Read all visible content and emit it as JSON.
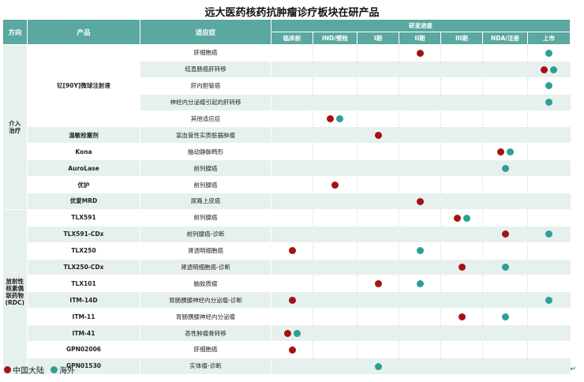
{
  "title": "远大医药核药抗肿瘤诊疗板块在研产品",
  "headers": {
    "direction": "方向",
    "product": "产品",
    "indication": "适应症",
    "progress": "研发进度",
    "stages": [
      "临床前",
      "IND/壁检",
      "I期",
      "II期",
      "III期",
      "NDA/注册",
      "上市"
    ]
  },
  "colors": {
    "china": "#a61212",
    "overseas": "#2e9e98",
    "header": "#5aa89f"
  },
  "groups": [
    {
      "direction": "介入\n治疗",
      "rows": 10
    },
    {
      "direction": "放射性\n核素偶\n联药物\n(RDC)",
      "rows": 10
    }
  ],
  "rows": [
    {
      "product": "钇[90Y]微球注射液",
      "indication": "肝细胞癌",
      "cn": 3,
      "os": 6
    },
    {
      "product": "",
      "indication": "结直肠癌肝转移",
      "cn": 6,
      "os": 6
    },
    {
      "product": "",
      "indication": "肝内胆管癌",
      "cn": null,
      "os": 6
    },
    {
      "product": "",
      "indication": "神经内分泌瘤引起的肝转移",
      "cn": null,
      "os": 6
    },
    {
      "product": "",
      "indication": "其他适应症",
      "cn": 1,
      "os": 1
    },
    {
      "product": "温敏栓塞剂",
      "indication": "富血管性实质脏器肿瘤",
      "cn": 2,
      "os": null
    },
    {
      "product": "Kona",
      "indication": "脑动静脉畸形",
      "cn": 5,
      "os": 5
    },
    {
      "product": "AuroLase",
      "indication": "前列腺癌",
      "cn": null,
      "os": 5
    },
    {
      "product": "优护",
      "indication": "前列腺癌",
      "cn": 1,
      "os": null
    },
    {
      "product": "优爱MRD",
      "indication": "尿路上皮癌",
      "cn": 3,
      "os": null
    },
    {
      "product": "TLX591",
      "indication": "前列腺癌",
      "cn": 4,
      "os": 4
    },
    {
      "product": "TLX591-CDx",
      "indication": "前列腺癌-诊断",
      "cn": 5,
      "os": 6
    },
    {
      "product": "TLX250",
      "indication": "肾透明细胞癌",
      "cn": 0,
      "os": 3
    },
    {
      "product": "TLX250-CDx",
      "indication": "肾透明细胞癌-诊断",
      "cn": 4,
      "os": 5
    },
    {
      "product": "TLX101",
      "indication": "脑胶质瘤",
      "cn": 2,
      "os": 3
    },
    {
      "product": "ITM-14D",
      "indication": "胃肠胰腺神经内分泌瘤-诊断",
      "cn": 0,
      "os": 6
    },
    {
      "product": "ITM-11",
      "indication": "胃肠胰腺神经内分泌瘤",
      "cn": 4,
      "os": 5
    },
    {
      "product": "ITM-41",
      "indication": "恶性肿瘤骨转移",
      "cn": 0,
      "os": 0
    },
    {
      "product": "GPN02006",
      "indication": "肝细胞癌",
      "cn": 0,
      "os": null
    },
    {
      "product": "GPN01530",
      "indication": "实体瘤-诊断",
      "cn": null,
      "os": 2
    }
  ],
  "legend": {
    "china": "中国大陆",
    "overseas": "海外"
  },
  "return_mark": "↵"
}
